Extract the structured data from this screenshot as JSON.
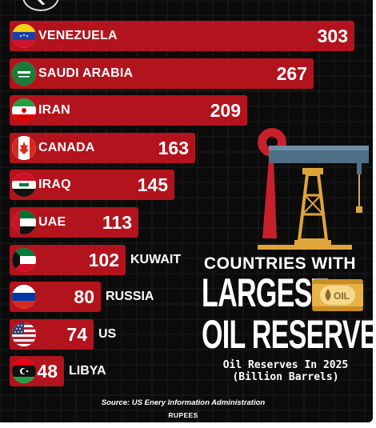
{
  "title_line1": "COUNTRIES WITH",
  "title_line2": "LARGEST",
  "title_line3": "OIL RESERVES",
  "barrel_label": "OIL",
  "subtitle_line1": "Oil Reserves In 2025",
  "subtitle_line2": "(Billion Barrels)",
  "source": "Source: US Enery Information Administration",
  "brand": "RUPEES",
  "colors": {
    "background": "#0b0b0b",
    "bar": "#b3131c",
    "text": "#ffffff"
  },
  "icons": {
    "back": "chevron-left-icon",
    "pump": "oil-pumpjack-icon",
    "barrel": "oil-barrel-icon"
  },
  "chart_data": {
    "type": "bar",
    "orientation": "horizontal",
    "categories": [
      "VENEZUELA",
      "SAUDI ARABIA",
      "IRAN",
      "CANADA",
      "IRAQ",
      "UAE",
      "KUWAIT",
      "RUSSIA",
      "US",
      "LIBYA"
    ],
    "values": [
      303,
      267,
      209,
      163,
      145,
      113,
      102,
      80,
      74,
      48
    ],
    "label_inside": [
      true,
      true,
      true,
      true,
      true,
      true,
      false,
      false,
      false,
      false
    ],
    "flags": [
      "venezuela",
      "saudi-arabia",
      "iran",
      "canada",
      "iraq",
      "uae",
      "kuwait",
      "russia",
      "us",
      "libya"
    ],
    "title": "COUNTRIES WITH LARGEST OIL RESERVES",
    "grid": true,
    "legend": "none"
  }
}
